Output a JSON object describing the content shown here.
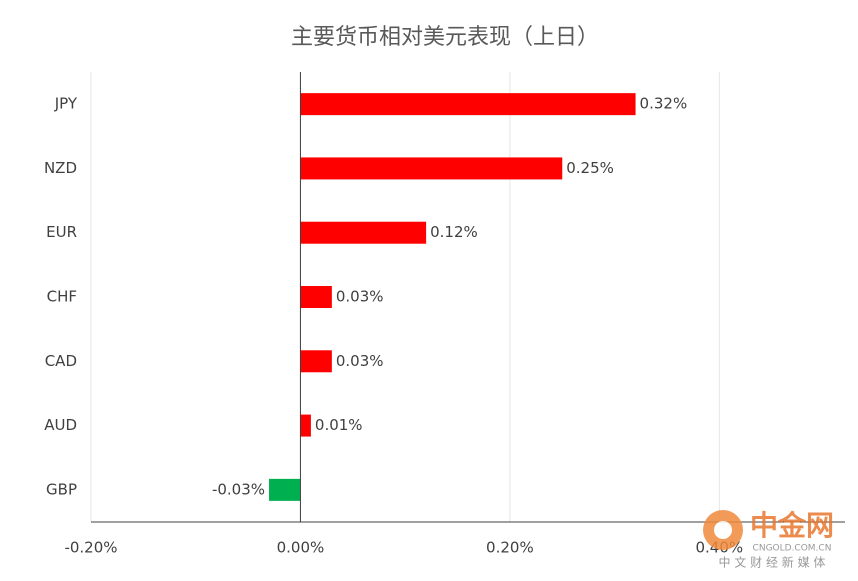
{
  "chart_data": {
    "type": "hbar",
    "title": "主要货币相对美元表现（上日）",
    "categories": [
      "JPY",
      "NZD",
      "EUR",
      "CHF",
      "CAD",
      "AUD",
      "GBP"
    ],
    "values": [
      0.32,
      0.25,
      0.12,
      0.03,
      0.03,
      0.01,
      -0.03
    ],
    "value_labels": [
      "0.32%",
      "0.25%",
      "0.12%",
      "0.03%",
      "0.03%",
      "0.01%",
      "-0.03%"
    ],
    "colors": [
      "#ff0000",
      "#ff0000",
      "#ff0000",
      "#ff0000",
      "#ff0000",
      "#ff0000",
      "#00b050"
    ],
    "xlim": [
      -0.2,
      0.52
    ],
    "xticks": [
      {
        "value": -0.2,
        "label": "-0.20%"
      },
      {
        "value": 0,
        "label": "0.00%"
      },
      {
        "value": 0.2,
        "label": "0.20%"
      },
      {
        "value": 0.4,
        "label": "0.40%"
      }
    ],
    "grid": true
  },
  "watermark": {
    "name": "中金网",
    "site": "CNGOLD.COM.CN",
    "slogan": "中 文 财 经 新 媒 体"
  }
}
